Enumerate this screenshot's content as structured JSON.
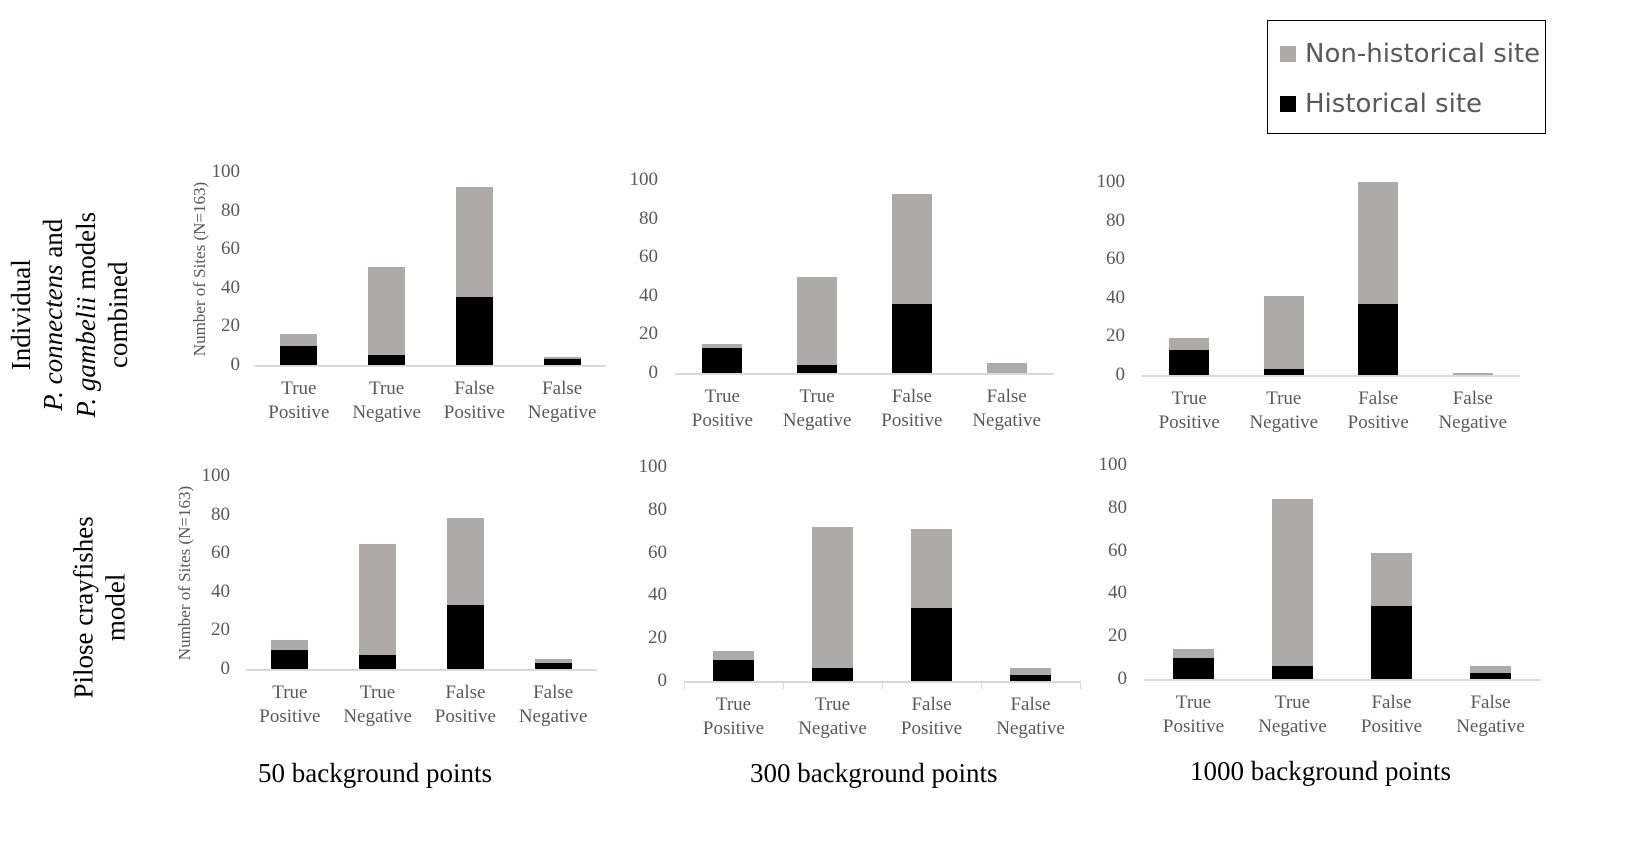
{
  "legend": {
    "items": [
      {
        "label": "Non-historical site",
        "color": "#aeaaaa"
      },
      {
        "label": "Historical site",
        "color": "#000000"
      }
    ]
  },
  "row_labels": {
    "top": {
      "line1": "Individual",
      "line2_italic": "P. connectens",
      "line2_rest": " and",
      "line3_italic": "P. gambelii",
      "line3_rest": " models",
      "line4": "combined"
    },
    "bottom": {
      "line1": "Pilose crayfishes",
      "line2": "model"
    }
  },
  "column_labels": [
    "50 background points",
    "300 background points",
    "1000 background points"
  ],
  "y_axis_title": "Number of Sites (N=163)",
  "chart_data": [
    {
      "type": "bar",
      "stacked": true,
      "title": "Individual models combined — 50 background points",
      "categories": [
        "True Positive",
        "True Negative",
        "False Positive",
        "False Negative"
      ],
      "series": [
        {
          "name": "Historical site",
          "color": "#000000",
          "values": [
            10,
            5,
            35,
            3
          ]
        },
        {
          "name": "Non-historical site",
          "color": "#aeaaaa",
          "values": [
            6,
            46,
            57,
            1
          ]
        }
      ],
      "ylabel": "Number of Sites (N=163)",
      "ylim": [
        0,
        100
      ],
      "yticks": [
        0,
        20,
        40,
        60,
        80,
        100
      ],
      "grid": false
    },
    {
      "type": "bar",
      "stacked": true,
      "title": "Individual models combined — 300 background points",
      "categories": [
        "True Positive",
        "True Negative",
        "False Positive",
        "False Negative"
      ],
      "series": [
        {
          "name": "Historical site",
          "color": "#000000",
          "values": [
            13,
            4,
            36,
            0
          ]
        },
        {
          "name": "Non-historical site",
          "color": "#aeaaaa",
          "values": [
            2,
            46,
            57,
            5
          ]
        }
      ],
      "ylabel": "",
      "ylim": [
        0,
        100
      ],
      "yticks": [
        0,
        20,
        40,
        60,
        80,
        100
      ],
      "grid": false
    },
    {
      "type": "bar",
      "stacked": true,
      "title": "Individual models combined — 1000 background points",
      "categories": [
        "True Positive",
        "True Negative",
        "False Positive",
        "False Negative"
      ],
      "series": [
        {
          "name": "Historical site",
          "color": "#000000",
          "values": [
            13,
            3,
            37,
            0
          ]
        },
        {
          "name": "Non-historical site",
          "color": "#aeaaaa",
          "values": [
            6,
            38,
            63,
            1
          ]
        }
      ],
      "ylabel": "",
      "ylim": [
        0,
        100
      ],
      "yticks": [
        0,
        20,
        40,
        60,
        80,
        100
      ],
      "grid": false
    },
    {
      "type": "bar",
      "stacked": true,
      "title": "Pilose crayfishes model — 50 background points",
      "categories": [
        "True Positive",
        "True Negative",
        "False Positive",
        "False Negative"
      ],
      "series": [
        {
          "name": "Historical site",
          "color": "#000000",
          "values": [
            10,
            7,
            33,
            3
          ]
        },
        {
          "name": "Non-historical site",
          "color": "#aeaaaa",
          "values": [
            5,
            58,
            45,
            2
          ]
        }
      ],
      "ylabel": "Number of Sites (N=163)",
      "ylim": [
        0,
        100
      ],
      "yticks": [
        0,
        20,
        40,
        60,
        80,
        100
      ],
      "grid": false
    },
    {
      "type": "bar",
      "stacked": true,
      "title": "Pilose crayfishes model — 300 background points",
      "categories": [
        "True Positive",
        "True Negative",
        "False Positive",
        "False Negative"
      ],
      "series": [
        {
          "name": "Historical site",
          "color": "#000000",
          "values": [
            10,
            6,
            34,
            3
          ]
        },
        {
          "name": "Non-historical site",
          "color": "#aeaaaa",
          "values": [
            4,
            66,
            37,
            3
          ]
        }
      ],
      "ylabel": "",
      "ylim": [
        0,
        100
      ],
      "yticks": [
        0,
        20,
        40,
        60,
        80,
        100
      ],
      "grid": false
    },
    {
      "type": "bar",
      "stacked": true,
      "title": "Pilose crayfishes model — 1000 background points",
      "categories": [
        "True Positive",
        "True Negative",
        "False Positive",
        "False Negative"
      ],
      "series": [
        {
          "name": "Historical site",
          "color": "#000000",
          "values": [
            10,
            6,
            34,
            3
          ]
        },
        {
          "name": "Non-historical site",
          "color": "#aeaaaa",
          "values": [
            4,
            78,
            25,
            3
          ]
        }
      ],
      "ylabel": "",
      "ylim": [
        0,
        100
      ],
      "yticks": [
        0,
        20,
        40,
        60,
        80,
        100
      ],
      "grid": false
    }
  ]
}
